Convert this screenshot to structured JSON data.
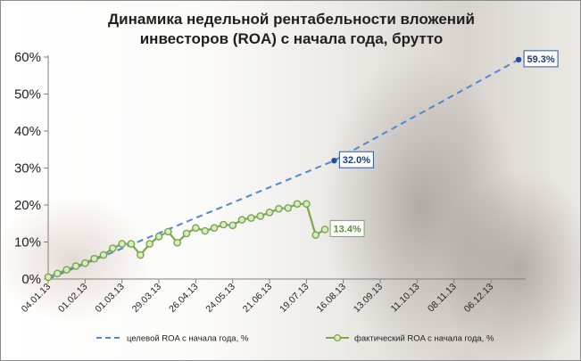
{
  "chart_data": {
    "type": "line",
    "title_line1": "Динамика недельной рентабельности вложений",
    "title_line2": "инвесторов (ROA) с начала года, брутто",
    "x_ticks": [
      "04.01.13",
      "01.02.13",
      "01.03.13",
      "29.03.13",
      "26.04.13",
      "24.05.13",
      "21.06.13",
      "19.07.13",
      "16.08.13",
      "13.09.13",
      "11.10.13",
      "08.11.13",
      "06.12.13"
    ],
    "xlim": [
      "2013-01-04",
      "2013-12-31"
    ],
    "y_ticks": [
      "0%",
      "10%",
      "20%",
      "30%",
      "40%",
      "50%",
      "60%"
    ],
    "ylim": [
      0,
      60
    ],
    "grid": "off",
    "legend_position": "bottom",
    "series": [
      {
        "name": "целевой ROA с начала года, %",
        "color": "#4f88d4",
        "style": "dashed",
        "points": [
          {
            "x": "2013-01-04",
            "y": 0
          },
          {
            "x": "2013-08-09",
            "y": 32.0
          },
          {
            "x": "2013-12-27",
            "y": 59.3
          }
        ],
        "labeled_points": [
          {
            "x": "2013-08-09",
            "y": 32.0,
            "label": "32.0%"
          },
          {
            "x": "2013-12-27",
            "y": 59.3,
            "label": "59.3%"
          }
        ]
      },
      {
        "name": "фактический ROA с начала года, %",
        "color": "#77a84a",
        "style": "solid-markers",
        "points": [
          {
            "x": "2013-01-04",
            "y": 0.5
          },
          {
            "x": "2013-01-11",
            "y": 1.5
          },
          {
            "x": "2013-01-18",
            "y": 2.5
          },
          {
            "x": "2013-01-25",
            "y": 3.5
          },
          {
            "x": "2013-02-01",
            "y": 4.3
          },
          {
            "x": "2013-02-08",
            "y": 5.5
          },
          {
            "x": "2013-02-15",
            "y": 6.5
          },
          {
            "x": "2013-02-22",
            "y": 8.3
          },
          {
            "x": "2013-03-01",
            "y": 9.5
          },
          {
            "x": "2013-03-08",
            "y": 9.5
          },
          {
            "x": "2013-03-15",
            "y": 6.5
          },
          {
            "x": "2013-03-22",
            "y": 9.5
          },
          {
            "x": "2013-03-29",
            "y": 11.5
          },
          {
            "x": "2013-04-05",
            "y": 12.8
          },
          {
            "x": "2013-04-12",
            "y": 9.8
          },
          {
            "x": "2013-04-19",
            "y": 12.3
          },
          {
            "x": "2013-04-26",
            "y": 13.8
          },
          {
            "x": "2013-05-03",
            "y": 13.0
          },
          {
            "x": "2013-05-10",
            "y": 13.8
          },
          {
            "x": "2013-05-17",
            "y": 14.7
          },
          {
            "x": "2013-05-24",
            "y": 14.5
          },
          {
            "x": "2013-05-31",
            "y": 16.0
          },
          {
            "x": "2013-06-07",
            "y": 16.5
          },
          {
            "x": "2013-06-14",
            "y": 17.0
          },
          {
            "x": "2013-06-21",
            "y": 18.0
          },
          {
            "x": "2013-06-28",
            "y": 19.0
          },
          {
            "x": "2013-07-05",
            "y": 19.2
          },
          {
            "x": "2013-07-12",
            "y": 20.3
          },
          {
            "x": "2013-07-19",
            "y": 20.3
          },
          {
            "x": "2013-07-26",
            "y": 11.9
          },
          {
            "x": "2013-08-02",
            "y": 13.4
          }
        ],
        "labeled_points": [
          {
            "x": "2013-08-02",
            "y": 13.4,
            "label": "13.4%"
          }
        ]
      }
    ]
  }
}
